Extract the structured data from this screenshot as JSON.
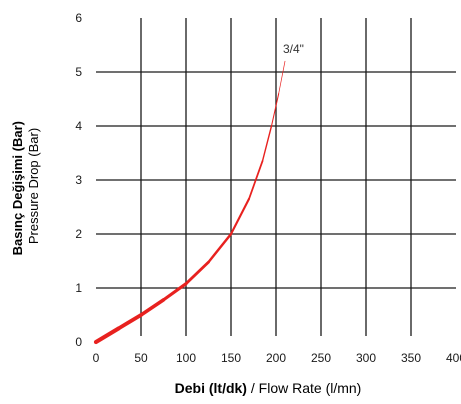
{
  "chart_data": {
    "type": "line",
    "xlim": [
      0,
      400
    ],
    "ylim": [
      0,
      6
    ],
    "x_ticks": [
      0,
      50,
      100,
      150,
      200,
      250,
      300,
      350,
      400
    ],
    "y_ticks": [
      0,
      1,
      2,
      3,
      4,
      5,
      6
    ],
    "x_tick_labels": [
      "0",
      "50",
      "100",
      "150",
      "200",
      "250",
      "300",
      "350",
      "400"
    ],
    "y_tick_labels": [
      "0",
      "1",
      "2",
      "3",
      "4",
      "5",
      "6"
    ],
    "xlabel": {
      "bold": "Debi (lt/dk)",
      "normal": " / Flow Rate (l/mn)"
    },
    "ylabel": {
      "bold": "Basınç Değişimi (Bar)",
      "normal": "Pressure Drop (Bar)"
    },
    "grid": true,
    "series": [
      {
        "name": "3/4\"",
        "color": "#e8211f",
        "points": [
          [
            0,
            0.0
          ],
          [
            25,
            0.25
          ],
          [
            50,
            0.5
          ],
          [
            75,
            0.78
          ],
          [
            100,
            1.08
          ],
          [
            125,
            1.48
          ],
          [
            150,
            2.0
          ],
          [
            170,
            2.65
          ],
          [
            185,
            3.35
          ],
          [
            195,
            4.0
          ],
          [
            203,
            4.6
          ],
          [
            210,
            5.2
          ]
        ]
      }
    ]
  }
}
